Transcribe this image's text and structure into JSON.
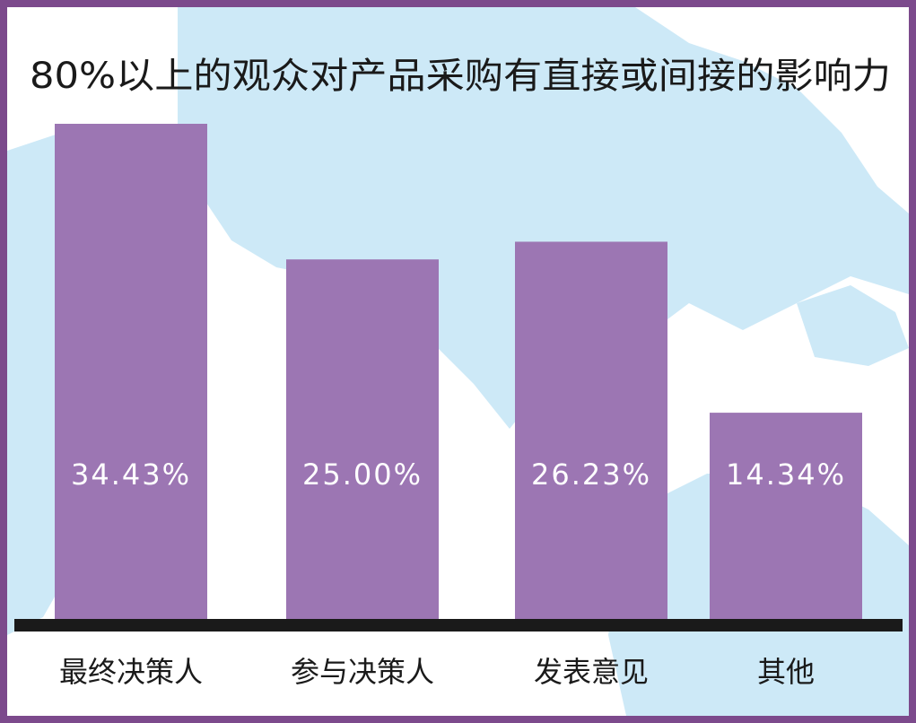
{
  "colors": {
    "frame": "#7c4a8c",
    "bar": "#9c76b3",
    "baseline": "#1a1a1a",
    "background": "#ffffff",
    "map": "#cde9f7",
    "title_text": "#1a1a1a",
    "label_text": "#ffffff",
    "category_text": "#1a1a1a"
  },
  "chart_data": {
    "type": "bar",
    "title": "80%以上的观众对产品采购有直接或间接的影响力",
    "xlabel": "",
    "ylabel": "",
    "categories": [
      "最终决策人",
      "参与决策人",
      "发表意见",
      "其他"
    ],
    "values": [
      34.43,
      25.0,
      26.23,
      14.34
    ],
    "value_labels": [
      "34.43%",
      "25.00%",
      "26.23%",
      "14.34%"
    ],
    "ylim": [
      0,
      40
    ],
    "grid": false,
    "legend": "none"
  }
}
